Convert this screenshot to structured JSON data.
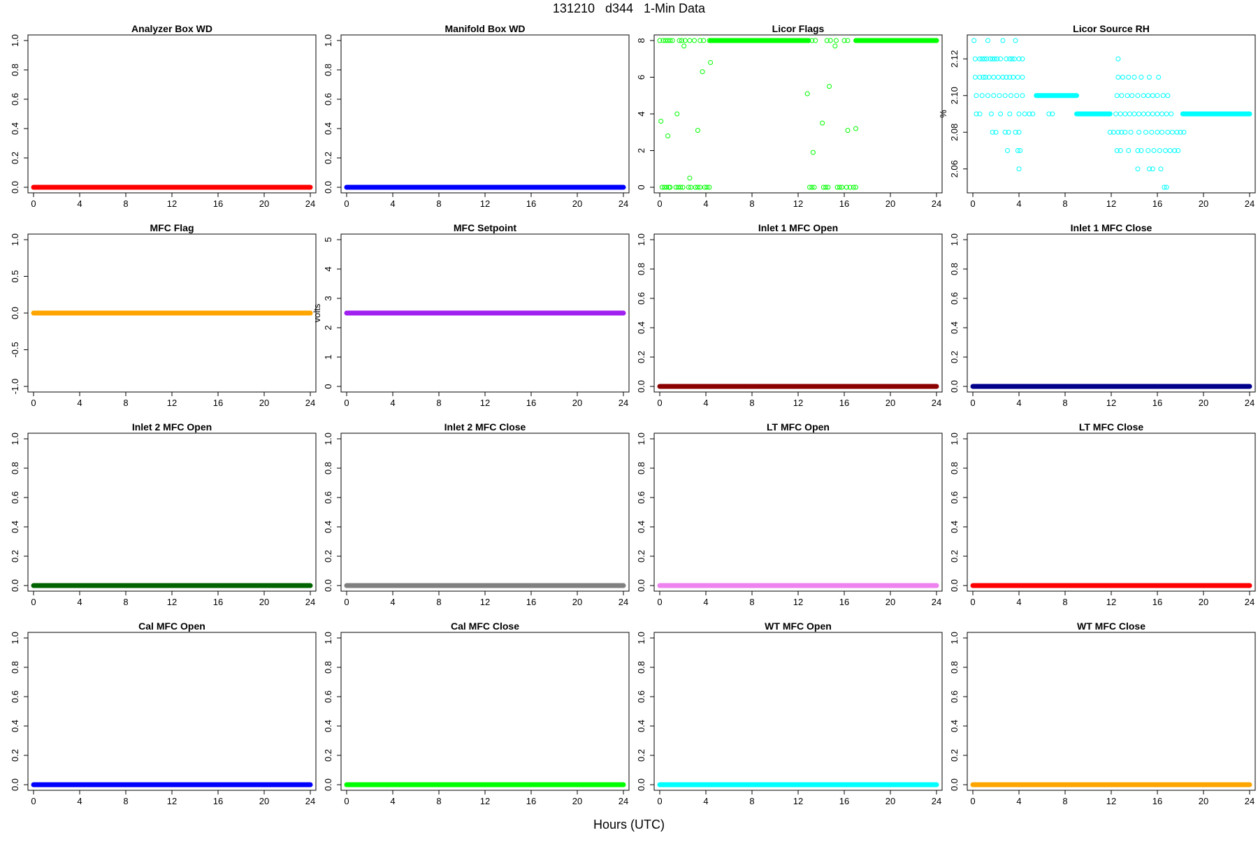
{
  "header": {
    "title": "131210   d344   1-Min Data"
  },
  "x_axis_title": "Hours (UTC)",
  "chart_data": [
    {
      "type": "scatter",
      "title": "Analyzer Box WD",
      "color": "#ff0000",
      "marker": "filled",
      "ylabel": "",
      "xlim": [
        0,
        24
      ],
      "ylim": [
        0,
        1
      ],
      "xticks": [
        "0",
        "4",
        "8",
        "12",
        "16",
        "20",
        "24"
      ],
      "yticks": [
        "0.0",
        "0.2",
        "0.4",
        "0.6",
        "0.8",
        "1.0"
      ],
      "series": [
        {
          "x": [
            0,
            24
          ],
          "y": [
            0,
            0
          ],
          "line": true
        }
      ]
    },
    {
      "type": "scatter",
      "title": "Manifold Box WD",
      "color": "#0000ff",
      "marker": "filled",
      "ylabel": "",
      "xlim": [
        0,
        24
      ],
      "ylim": [
        0,
        1
      ],
      "xticks": [
        "0",
        "4",
        "8",
        "12",
        "16",
        "20",
        "24"
      ],
      "yticks": [
        "0.0",
        "0.2",
        "0.4",
        "0.6",
        "0.8",
        "1.0"
      ],
      "series": [
        {
          "x": [
            0,
            24
          ],
          "y": [
            0,
            0
          ],
          "line": true
        }
      ]
    },
    {
      "type": "scatter",
      "title": "Licor Flags",
      "color": "#00ff00",
      "marker": "open",
      "ylabel": "",
      "xlim": [
        0,
        24
      ],
      "ylim": [
        0,
        8
      ],
      "xticks": [
        "0",
        "4",
        "8",
        "12",
        "16",
        "20",
        "24"
      ],
      "yticks": [
        "0",
        "2",
        "4",
        "6",
        "8"
      ],
      "series": [
        {
          "x": [
            0,
            0.3,
            0.5,
            0.7,
            0.9,
            1.1,
            1.7,
            1.9,
            2.2,
            2.6,
            3.0,
            3.5,
            3.8,
            4.3,
            4.5,
            12.9,
            13.2,
            13.5,
            14.5,
            14.8,
            15.3,
            16.0,
            16.3,
            17.2,
            24
          ],
          "y": [
            8,
            8,
            8,
            8,
            8,
            8,
            8,
            8,
            8,
            8,
            8,
            8,
            8,
            8,
            8,
            8,
            8,
            8,
            8,
            8,
            8,
            8,
            8,
            8,
            8
          ],
          "line": false
        },
        {
          "x": [
            4.4,
            12.9
          ],
          "y": [
            8,
            8
          ],
          "line": true
        },
        {
          "x": [
            17.0,
            24
          ],
          "y": [
            8,
            8
          ],
          "line": true
        },
        {
          "x": [
            0.2,
            0.4,
            0.6,
            0.8,
            0.9,
            1.4,
            1.6,
            1.8,
            2.0,
            2.5,
            2.7,
            3.1,
            3.3,
            3.5,
            3.9,
            4.1,
            4.3,
            13.0,
            13.2,
            13.4,
            14.2,
            14.4,
            14.6,
            15.4,
            15.6,
            15.8,
            16.2,
            16.5,
            16.8,
            17.0
          ],
          "y": [
            0,
            0,
            0,
            0,
            0,
            0,
            0,
            0,
            0,
            0,
            0,
            0,
            0,
            0,
            0,
            0,
            0,
            0,
            0,
            0,
            0,
            0,
            0,
            0,
            0,
            0,
            0,
            0,
            0,
            0
          ],
          "line": false
        },
        {
          "x": [
            0.1,
            0.7,
            1.5,
            2.1,
            2.6,
            3.3,
            3.7,
            4.4,
            12.8,
            13.3,
            14.1,
            14.7,
            15.2,
            16.3,
            17.0
          ],
          "y": [
            3.6,
            2.8,
            4.0,
            7.7,
            0.5,
            3.1,
            6.3,
            6.8,
            5.1,
            1.9,
            3.5,
            5.5,
            7.7,
            3.1,
            3.2
          ],
          "line": false
        }
      ]
    },
    {
      "type": "scatter",
      "title": "Licor Source RH",
      "color": "#00ffff",
      "marker": "open",
      "ylabel": "%",
      "xlim": [
        0,
        24
      ],
      "ylim": [
        2.05,
        2.13
      ],
      "xticks": [
        "0",
        "4",
        "8",
        "12",
        "16",
        "20",
        "24"
      ],
      "yticks": [
        "2.06",
        "2.08",
        "2.10",
        "2.12"
      ],
      "series": [
        {
          "x": [
            0.1,
            1.3,
            2.6,
            3.7
          ],
          "y": [
            2.13,
            2.13,
            2.13,
            2.13
          ],
          "line": false
        },
        {
          "x": [
            0.2,
            0.6,
            0.8,
            1.0,
            1.2,
            1.5,
            1.7,
            1.9,
            2.1,
            2.4,
            2.9,
            3.2,
            3.4,
            3.6,
            4.0,
            4.3,
            12.6
          ],
          "y": [
            2.12,
            2.12,
            2.12,
            2.12,
            2.12,
            2.12,
            2.12,
            2.12,
            2.12,
            2.12,
            2.12,
            2.12,
            2.12,
            2.12,
            2.12,
            2.12,
            2.12
          ],
          "line": false
        },
        {
          "x": [
            0.2,
            0.6,
            0.9,
            1.1,
            1.4,
            1.8,
            2.2,
            2.6,
            2.9,
            3.2,
            3.5,
            3.9,
            4.3,
            12.6,
            13.0,
            13.5,
            14.0,
            14.6,
            15.3,
            16.1
          ],
          "y": [
            2.11,
            2.11,
            2.11,
            2.11,
            2.11,
            2.11,
            2.11,
            2.11,
            2.11,
            2.11,
            2.11,
            2.11,
            2.11,
            2.11,
            2.11,
            2.11,
            2.11,
            2.11,
            2.11,
            2.11
          ],
          "line": false
        },
        {
          "x": [
            0.3,
            0.8,
            1.3,
            1.8,
            2.3,
            2.8,
            3.3,
            3.8,
            4.3,
            12.5,
            12.9,
            13.4,
            13.8,
            14.3,
            14.8,
            15.2,
            15.6,
            16.0,
            16.5,
            16.9
          ],
          "y": [
            2.1,
            2.1,
            2.1,
            2.1,
            2.1,
            2.1,
            2.1,
            2.1,
            2.1,
            2.1,
            2.1,
            2.1,
            2.1,
            2.1,
            2.1,
            2.1,
            2.1,
            2.1,
            2.1,
            2.1
          ],
          "line": false
        },
        {
          "x": [
            5.5,
            9.0
          ],
          "y": [
            2.1,
            2.1
          ],
          "line": true
        },
        {
          "x": [
            0.3,
            0.6,
            1.6,
            2.4,
            3.2,
            4.0,
            4.5,
            4.9,
            5.2,
            6.6,
            6.9,
            12.4,
            12.8,
            13.2,
            13.6,
            14.0,
            14.4,
            14.8,
            15.2,
            15.6,
            16.0,
            16.4,
            16.8,
            17.2
          ],
          "y": [
            2.09,
            2.09,
            2.09,
            2.09,
            2.09,
            2.09,
            2.09,
            2.09,
            2.09,
            2.09,
            2.09,
            2.09,
            2.09,
            2.09,
            2.09,
            2.09,
            2.09,
            2.09,
            2.09,
            2.09,
            2.09,
            2.09,
            2.09,
            2.09
          ],
          "line": false
        },
        {
          "x": [
            9.0,
            11.9
          ],
          "y": [
            2.09,
            2.09
          ],
          "line": true
        },
        {
          "x": [
            18.2,
            24
          ],
          "y": [
            2.09,
            2.09
          ],
          "line": true
        },
        {
          "x": [
            1.7,
            2.0,
            2.8,
            3.1,
            3.7,
            4.0,
            11.9,
            12.2,
            12.6,
            12.9,
            13.2,
            13.7,
            14.4,
            15.0,
            15.5,
            16.0,
            16.4,
            16.9,
            17.3,
            17.7,
            18.0,
            18.3
          ],
          "y": [
            2.08,
            2.08,
            2.08,
            2.08,
            2.08,
            2.08,
            2.08,
            2.08,
            2.08,
            2.08,
            2.08,
            2.08,
            2.08,
            2.08,
            2.08,
            2.08,
            2.08,
            2.08,
            2.08,
            2.08,
            2.08,
            2.08
          ],
          "line": false
        },
        {
          "x": [
            3.0,
            3.9,
            4.1,
            12.5,
            12.8,
            13.5,
            14.3,
            14.6,
            15.2,
            15.7,
            16.2,
            16.7,
            17.1,
            17.5,
            17.8
          ],
          "y": [
            2.07,
            2.07,
            2.07,
            2.07,
            2.07,
            2.07,
            2.07,
            2.07,
            2.07,
            2.07,
            2.07,
            2.07,
            2.07,
            2.07,
            2.07
          ],
          "line": false
        },
        {
          "x": [
            4.0,
            14.3,
            15.3,
            15.6,
            16.3
          ],
          "y": [
            2.06,
            2.06,
            2.06,
            2.06,
            2.06
          ],
          "line": false
        },
        {
          "x": [
            16.6,
            16.8
          ],
          "y": [
            2.05,
            2.05
          ],
          "line": false
        }
      ]
    },
    {
      "type": "scatter",
      "title": "MFC Flag",
      "color": "#ffa500",
      "marker": "filled",
      "ylabel": "",
      "xlim": [
        0,
        24
      ],
      "ylim": [
        -1,
        1
      ],
      "xticks": [
        "0",
        "4",
        "8",
        "12",
        "16",
        "20",
        "24"
      ],
      "yticks": [
        "-1.0",
        "-0.5",
        "0.0",
        "0.5",
        "1.0"
      ],
      "series": [
        {
          "x": [
            0,
            24
          ],
          "y": [
            0,
            0
          ],
          "line": true
        }
      ]
    },
    {
      "type": "scatter",
      "title": "MFC Setpoint",
      "color": "#a020f0",
      "marker": "filled",
      "ylabel": "volts",
      "xlim": [
        0,
        24
      ],
      "ylim": [
        0,
        5
      ],
      "xticks": [
        "0",
        "4",
        "8",
        "12",
        "16",
        "20",
        "24"
      ],
      "yticks": [
        "0",
        "1",
        "2",
        "3",
        "4",
        "5"
      ],
      "series": [
        {
          "x": [
            0,
            24
          ],
          "y": [
            2.5,
            2.5
          ],
          "line": true
        }
      ]
    },
    {
      "type": "scatter",
      "title": "Inlet 1 MFC Open",
      "color": "#8b0000",
      "marker": "filled",
      "ylabel": "",
      "xlim": [
        0,
        24
      ],
      "ylim": [
        0,
        1
      ],
      "xticks": [
        "0",
        "4",
        "8",
        "12",
        "16",
        "20",
        "24"
      ],
      "yticks": [
        "0.0",
        "0.2",
        "0.4",
        "0.6",
        "0.8",
        "1.0"
      ],
      "series": [
        {
          "x": [
            0,
            24
          ],
          "y": [
            0,
            0
          ],
          "line": true
        }
      ]
    },
    {
      "type": "scatter",
      "title": "Inlet 1 MFC Close",
      "color": "#00008b",
      "marker": "filled",
      "ylabel": "",
      "xlim": [
        0,
        24
      ],
      "ylim": [
        0,
        1
      ],
      "xticks": [
        "0",
        "4",
        "8",
        "12",
        "16",
        "20",
        "24"
      ],
      "yticks": [
        "0.0",
        "0.2",
        "0.4",
        "0.6",
        "0.8",
        "1.0"
      ],
      "series": [
        {
          "x": [
            0,
            24
          ],
          "y": [
            0,
            0
          ],
          "line": true
        }
      ]
    },
    {
      "type": "scatter",
      "title": "Inlet 2 MFC Open",
      "color": "#006400",
      "marker": "filled",
      "ylabel": "",
      "xlim": [
        0,
        24
      ],
      "ylim": [
        0,
        1
      ],
      "xticks": [
        "0",
        "4",
        "8",
        "12",
        "16",
        "20",
        "24"
      ],
      "yticks": [
        "0.0",
        "0.2",
        "0.4",
        "0.6",
        "0.8",
        "1.0"
      ],
      "series": [
        {
          "x": [
            0,
            24
          ],
          "y": [
            0,
            0
          ],
          "line": true
        }
      ]
    },
    {
      "type": "scatter",
      "title": "Inlet 2 MFC Close",
      "color": "#808080",
      "marker": "filled",
      "ylabel": "",
      "xlim": [
        0,
        24
      ],
      "ylim": [
        0,
        1
      ],
      "xticks": [
        "0",
        "4",
        "8",
        "12",
        "16",
        "20",
        "24"
      ],
      "yticks": [
        "0.0",
        "0.2",
        "0.4",
        "0.6",
        "0.8",
        "1.0"
      ],
      "series": [
        {
          "x": [
            0,
            24
          ],
          "y": [
            0,
            0
          ],
          "line": true
        }
      ]
    },
    {
      "type": "scatter",
      "title": "LT MFC Open",
      "color": "#ee82ee",
      "marker": "filled",
      "ylabel": "",
      "xlim": [
        0,
        24
      ],
      "ylim": [
        0,
        1
      ],
      "xticks": [
        "0",
        "4",
        "8",
        "12",
        "16",
        "20",
        "24"
      ],
      "yticks": [
        "0.0",
        "0.2",
        "0.4",
        "0.6",
        "0.8",
        "1.0"
      ],
      "series": [
        {
          "x": [
            0,
            24
          ],
          "y": [
            0,
            0
          ],
          "line": true
        }
      ]
    },
    {
      "type": "scatter",
      "title": "LT MFC Close",
      "color": "#ff0000",
      "marker": "filled",
      "ylabel": "",
      "xlim": [
        0,
        24
      ],
      "ylim": [
        0,
        1
      ],
      "xticks": [
        "0",
        "4",
        "8",
        "12",
        "16",
        "20",
        "24"
      ],
      "yticks": [
        "0.0",
        "0.2",
        "0.4",
        "0.6",
        "0.8",
        "1.0"
      ],
      "series": [
        {
          "x": [
            0,
            24
          ],
          "y": [
            0,
            0
          ],
          "line": true
        }
      ]
    },
    {
      "type": "scatter",
      "title": "Cal MFC Open",
      "color": "#0000ff",
      "marker": "filled",
      "ylabel": "",
      "xlim": [
        0,
        24
      ],
      "ylim": [
        0,
        1
      ],
      "xticks": [
        "0",
        "4",
        "8",
        "12",
        "16",
        "20",
        "24"
      ],
      "yticks": [
        "0.0",
        "0.2",
        "0.4",
        "0.6",
        "0.8",
        "1.0"
      ],
      "series": [
        {
          "x": [
            0,
            24
          ],
          "y": [
            0,
            0
          ],
          "line": true
        }
      ]
    },
    {
      "type": "scatter",
      "title": "Cal MFC Close",
      "color": "#00ff00",
      "marker": "filled",
      "ylabel": "",
      "xlim": [
        0,
        24
      ],
      "ylim": [
        0,
        1
      ],
      "xticks": [
        "0",
        "4",
        "8",
        "12",
        "16",
        "20",
        "24"
      ],
      "yticks": [
        "0.0",
        "0.2",
        "0.4",
        "0.6",
        "0.8",
        "1.0"
      ],
      "series": [
        {
          "x": [
            0,
            24
          ],
          "y": [
            0,
            0
          ],
          "line": true
        }
      ]
    },
    {
      "type": "scatter",
      "title": "WT MFC Open",
      "color": "#00ffff",
      "marker": "filled",
      "ylabel": "",
      "xlim": [
        0,
        24
      ],
      "ylim": [
        0,
        1
      ],
      "xticks": [
        "0",
        "4",
        "8",
        "12",
        "16",
        "20",
        "24"
      ],
      "yticks": [
        "0.0",
        "0.2",
        "0.4",
        "0.6",
        "0.8",
        "1.0"
      ],
      "series": [
        {
          "x": [
            0,
            24
          ],
          "y": [
            0,
            0
          ],
          "line": true
        }
      ]
    },
    {
      "type": "scatter",
      "title": "WT MFC Close",
      "color": "#ffa500",
      "marker": "filled",
      "ylabel": "",
      "xlim": [
        0,
        24
      ],
      "ylim": [
        0,
        1
      ],
      "xticks": [
        "0",
        "4",
        "8",
        "12",
        "16",
        "20",
        "24"
      ],
      "yticks": [
        "0.0",
        "0.2",
        "0.4",
        "0.6",
        "0.8",
        "1.0"
      ],
      "series": [
        {
          "x": [
            0,
            24
          ],
          "y": [
            0,
            0
          ],
          "line": true
        }
      ]
    }
  ]
}
